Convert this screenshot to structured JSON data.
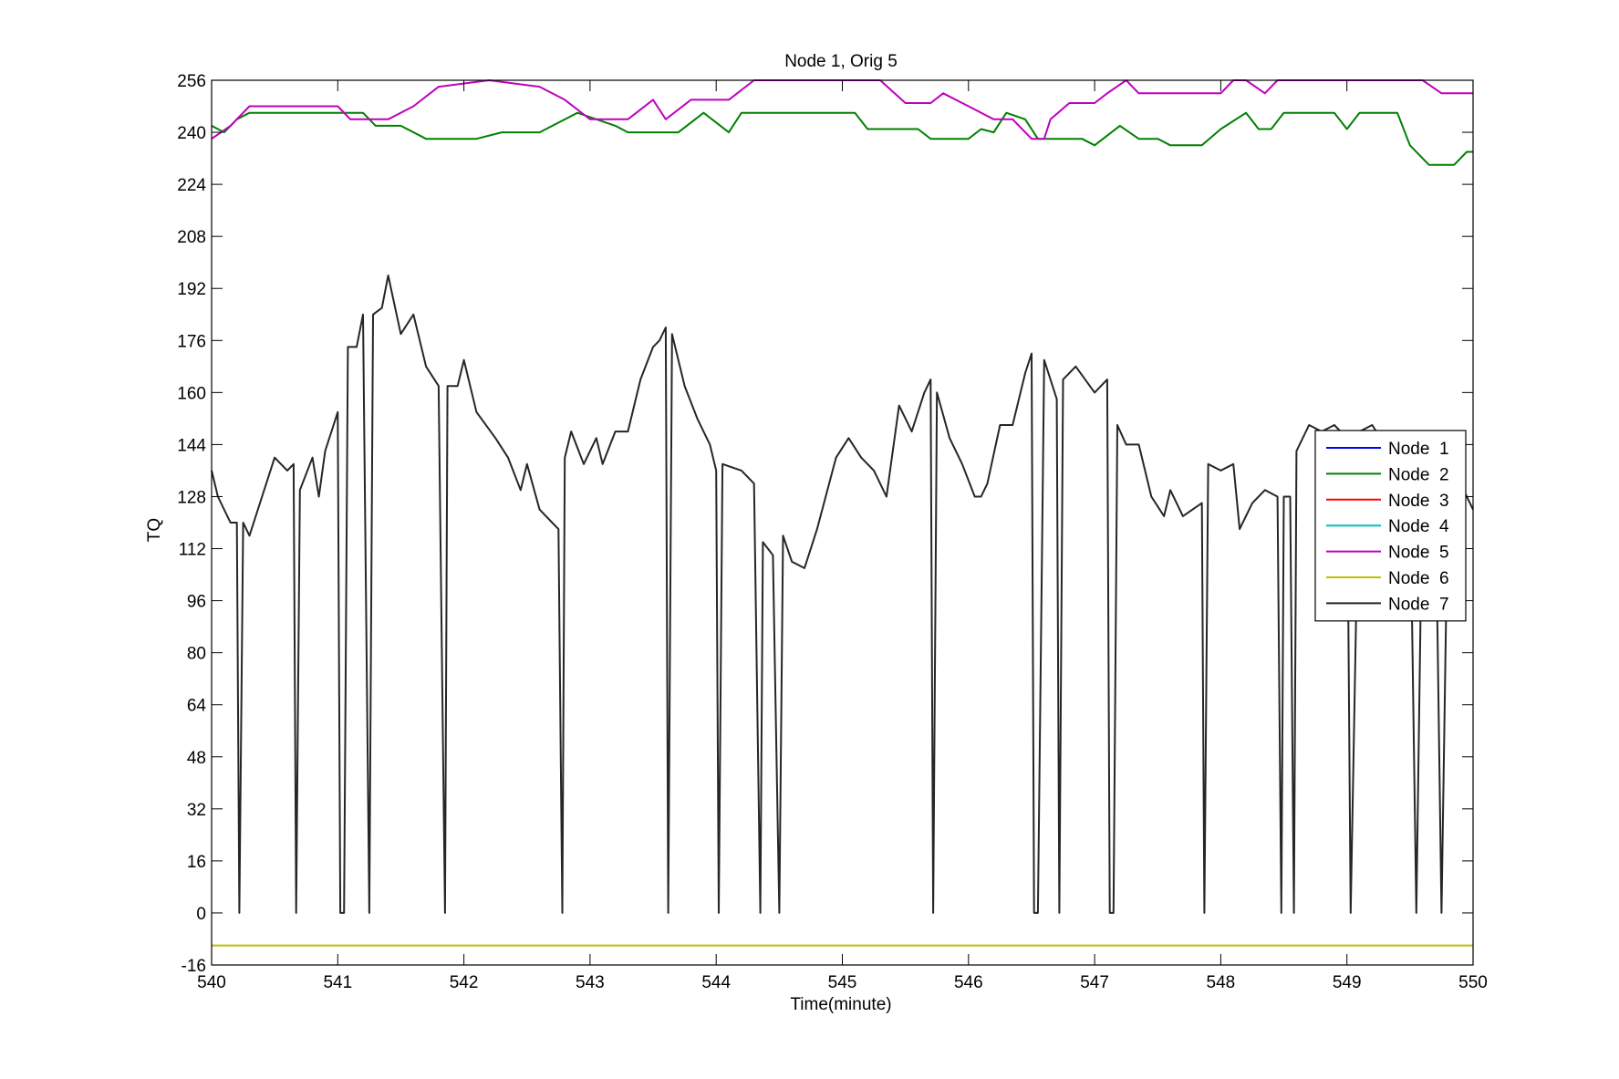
{
  "chart_data": {
    "type": "line",
    "title": "Node 1, Orig 5",
    "xlabel": "Time(minute)",
    "ylabel": "TQ",
    "xlim": [
      540,
      550
    ],
    "ylim": [
      -16,
      256
    ],
    "xticks": [
      540,
      541,
      542,
      543,
      544,
      545,
      546,
      547,
      548,
      549,
      550
    ],
    "yticks": [
      -16,
      0,
      16,
      32,
      48,
      64,
      80,
      96,
      112,
      128,
      144,
      160,
      176,
      192,
      208,
      224,
      240,
      256
    ],
    "grid": false,
    "legend_position": "right",
    "series": [
      {
        "name": "Node  1",
        "color": "#0000ff",
        "points": []
      },
      {
        "name": "Node  2",
        "color": "#008000",
        "points": [
          [
            540,
            242
          ],
          [
            540.1,
            240
          ],
          [
            540.2,
            244
          ],
          [
            540.3,
            246
          ],
          [
            541.2,
            246
          ],
          [
            541.3,
            242
          ],
          [
            541.5,
            242
          ],
          [
            541.7,
            238
          ],
          [
            542.1,
            238
          ],
          [
            542.3,
            240
          ],
          [
            542.6,
            240
          ],
          [
            542.9,
            246
          ],
          [
            543.2,
            242
          ],
          [
            543.3,
            240
          ],
          [
            543.7,
            240
          ],
          [
            543.9,
            246
          ],
          [
            544.1,
            240
          ],
          [
            544.2,
            246
          ],
          [
            545.1,
            246
          ],
          [
            545.2,
            241
          ],
          [
            545.6,
            241
          ],
          [
            545.7,
            238
          ],
          [
            546.0,
            238
          ],
          [
            546.1,
            241
          ],
          [
            546.2,
            240
          ],
          [
            546.3,
            246
          ],
          [
            546.45,
            244
          ],
          [
            546.55,
            238
          ],
          [
            546.9,
            238
          ],
          [
            547.0,
            236
          ],
          [
            547.2,
            242
          ],
          [
            547.35,
            238
          ],
          [
            547.5,
            238
          ],
          [
            547.6,
            236
          ],
          [
            547.85,
            236
          ],
          [
            548.0,
            241
          ],
          [
            548.2,
            246
          ],
          [
            548.3,
            241
          ],
          [
            548.4,
            241
          ],
          [
            548.5,
            246
          ],
          [
            548.9,
            246
          ],
          [
            549.0,
            241
          ],
          [
            549.1,
            246
          ],
          [
            549.4,
            246
          ],
          [
            549.5,
            236
          ],
          [
            549.65,
            230
          ],
          [
            549.85,
            230
          ],
          [
            549.95,
            234
          ],
          [
            550,
            234
          ]
        ]
      },
      {
        "name": "Node  3",
        "color": "#ff0000",
        "points": []
      },
      {
        "name": "Node  4",
        "color": "#00bfbf",
        "points": []
      },
      {
        "name": "Node  5",
        "color": "#bf00bf",
        "points": [
          [
            540,
            238
          ],
          [
            540.15,
            242
          ],
          [
            540.3,
            248
          ],
          [
            541.0,
            248
          ],
          [
            541.1,
            244
          ],
          [
            541.4,
            244
          ],
          [
            541.6,
            248
          ],
          [
            541.8,
            254
          ],
          [
            542.2,
            256
          ],
          [
            542.6,
            254
          ],
          [
            542.8,
            250
          ],
          [
            543.0,
            244
          ],
          [
            543.3,
            244
          ],
          [
            543.5,
            250
          ],
          [
            543.6,
            244
          ],
          [
            543.8,
            250
          ],
          [
            544.1,
            250
          ],
          [
            544.3,
            256
          ],
          [
            545.3,
            256
          ],
          [
            545.5,
            249
          ],
          [
            545.7,
            249
          ],
          [
            545.8,
            252
          ],
          [
            546.0,
            248
          ],
          [
            546.2,
            244
          ],
          [
            546.35,
            244
          ],
          [
            546.5,
            238
          ],
          [
            546.6,
            238
          ],
          [
            546.65,
            244
          ],
          [
            546.8,
            249
          ],
          [
            547.0,
            249
          ],
          [
            547.1,
            252
          ],
          [
            547.25,
            256
          ],
          [
            547.35,
            252
          ],
          [
            547.5,
            252
          ],
          [
            547.7,
            252
          ],
          [
            548.0,
            252
          ],
          [
            548.1,
            256
          ],
          [
            548.2,
            256
          ],
          [
            548.35,
            252
          ],
          [
            548.45,
            256
          ],
          [
            549.3,
            256
          ],
          [
            549.6,
            256
          ],
          [
            549.75,
            252
          ],
          [
            550,
            252
          ]
        ]
      },
      {
        "name": "Node  6",
        "color": "#bfbf00",
        "points": [
          [
            540,
            -10
          ],
          [
            550,
            -10
          ]
        ]
      },
      {
        "name": "Node  7",
        "color": "#262626",
        "points": [
          [
            540,
            136
          ],
          [
            540.05,
            128
          ],
          [
            540.15,
            120
          ],
          [
            540.2,
            120
          ],
          [
            540.22,
            0
          ],
          [
            540.25,
            120
          ],
          [
            540.3,
            116
          ],
          [
            540.4,
            128
          ],
          [
            540.5,
            140
          ],
          [
            540.6,
            136
          ],
          [
            540.65,
            138
          ],
          [
            540.67,
            0
          ],
          [
            540.7,
            130
          ],
          [
            540.8,
            140
          ],
          [
            540.85,
            128
          ],
          [
            540.9,
            142
          ],
          [
            541.0,
            154
          ],
          [
            541.02,
            0
          ],
          [
            541.05,
            0
          ],
          [
            541.08,
            174
          ],
          [
            541.15,
            174
          ],
          [
            541.2,
            184
          ],
          [
            541.25,
            0
          ],
          [
            541.28,
            184
          ],
          [
            541.35,
            186
          ],
          [
            541.4,
            196
          ],
          [
            541.5,
            178
          ],
          [
            541.6,
            184
          ],
          [
            541.7,
            168
          ],
          [
            541.8,
            162
          ],
          [
            541.85,
            0
          ],
          [
            541.87,
            162
          ],
          [
            541.95,
            162
          ],
          [
            542.0,
            170
          ],
          [
            542.1,
            154
          ],
          [
            542.25,
            146
          ],
          [
            542.35,
            140
          ],
          [
            542.45,
            130
          ],
          [
            542.5,
            138
          ],
          [
            542.6,
            124
          ],
          [
            542.7,
            120
          ],
          [
            542.75,
            118
          ],
          [
            542.78,
            0
          ],
          [
            542.8,
            140
          ],
          [
            542.85,
            148
          ],
          [
            542.95,
            138
          ],
          [
            543.05,
            146
          ],
          [
            543.1,
            138
          ],
          [
            543.2,
            148
          ],
          [
            543.3,
            148
          ],
          [
            543.4,
            164
          ],
          [
            543.5,
            174
          ],
          [
            543.55,
            176
          ],
          [
            543.6,
            180
          ],
          [
            543.62,
            0
          ],
          [
            543.65,
            178
          ],
          [
            543.75,
            162
          ],
          [
            543.85,
            152
          ],
          [
            543.95,
            144
          ],
          [
            544.0,
            136
          ],
          [
            544.02,
            0
          ],
          [
            544.05,
            138
          ],
          [
            544.2,
            136
          ],
          [
            544.3,
            132
          ],
          [
            544.35,
            0
          ],
          [
            544.37,
            114
          ],
          [
            544.45,
            110
          ],
          [
            544.5,
            0
          ],
          [
            544.53,
            116
          ],
          [
            544.6,
            108
          ],
          [
            544.7,
            106
          ],
          [
            544.8,
            118
          ],
          [
            544.95,
            140
          ],
          [
            545.05,
            146
          ],
          [
            545.15,
            140
          ],
          [
            545.25,
            136
          ],
          [
            545.35,
            128
          ],
          [
            545.45,
            156
          ],
          [
            545.55,
            148
          ],
          [
            545.65,
            160
          ],
          [
            545.7,
            164
          ],
          [
            545.72,
            0
          ],
          [
            545.75,
            160
          ],
          [
            545.85,
            146
          ],
          [
            545.95,
            138
          ],
          [
            546.05,
            128
          ],
          [
            546.1,
            128
          ],
          [
            546.15,
            132
          ],
          [
            546.25,
            150
          ],
          [
            546.35,
            150
          ],
          [
            546.45,
            166
          ],
          [
            546.5,
            172
          ],
          [
            546.52,
            0
          ],
          [
            546.55,
            0
          ],
          [
            546.6,
            170
          ],
          [
            546.7,
            158
          ],
          [
            546.72,
            0
          ],
          [
            546.75,
            164
          ],
          [
            546.85,
            168
          ],
          [
            547.0,
            160
          ],
          [
            547.1,
            164
          ],
          [
            547.12,
            0
          ],
          [
            547.15,
            0
          ],
          [
            547.18,
            150
          ],
          [
            547.25,
            144
          ],
          [
            547.35,
            144
          ],
          [
            547.45,
            128
          ],
          [
            547.55,
            122
          ],
          [
            547.6,
            130
          ],
          [
            547.7,
            122
          ],
          [
            547.85,
            126
          ],
          [
            547.87,
            0
          ],
          [
            547.9,
            138
          ],
          [
            548.0,
            136
          ],
          [
            548.1,
            138
          ],
          [
            548.15,
            118
          ],
          [
            548.25,
            126
          ],
          [
            548.35,
            130
          ],
          [
            548.45,
            128
          ],
          [
            548.48,
            0
          ],
          [
            548.5,
            128
          ],
          [
            548.55,
            128
          ],
          [
            548.58,
            0
          ],
          [
            548.6,
            142
          ],
          [
            548.7,
            150
          ],
          [
            548.8,
            148
          ],
          [
            548.9,
            150
          ],
          [
            549.0,
            146
          ],
          [
            549.03,
            0
          ],
          [
            549.1,
            148
          ],
          [
            549.2,
            150
          ],
          [
            549.3,
            144
          ],
          [
            549.4,
            140
          ],
          [
            549.5,
            134
          ],
          [
            549.55,
            0
          ],
          [
            549.6,
            136
          ],
          [
            549.7,
            136
          ],
          [
            549.75,
            0
          ],
          [
            549.8,
            126
          ],
          [
            549.9,
            132
          ],
          [
            550,
            124
          ]
        ]
      }
    ]
  }
}
